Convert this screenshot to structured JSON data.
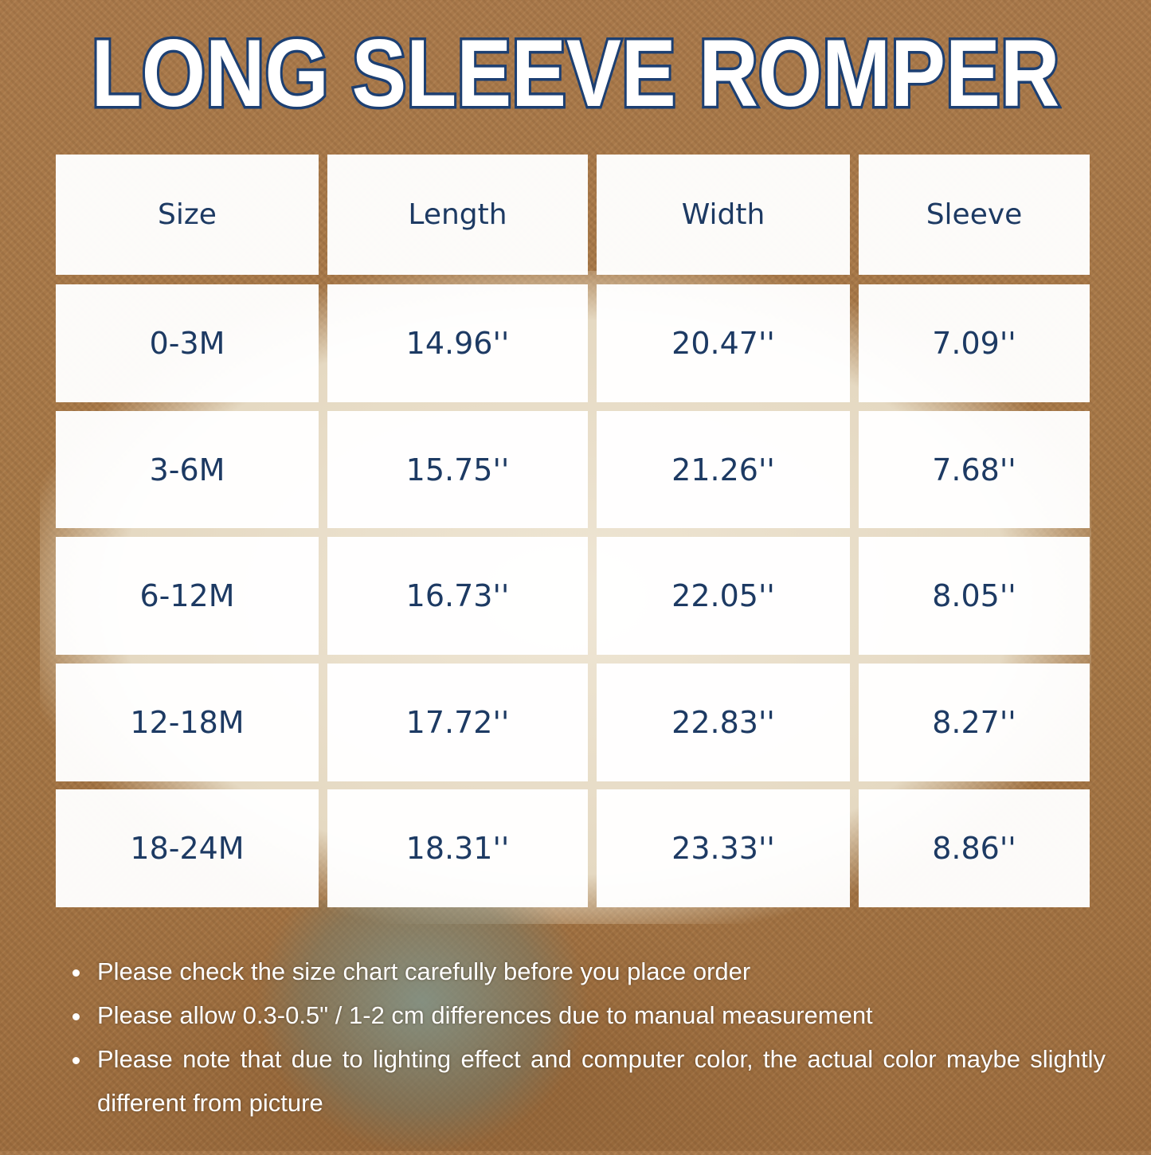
{
  "title": "LONG SLEEVE ROMPER",
  "colors": {
    "title_fill": "#ffffff",
    "title_stroke": "#1c3f72",
    "table_text": "#1d3a63",
    "background": "#a57746"
  },
  "table": {
    "headers": [
      "Size",
      "Length",
      "Width",
      "Sleeve"
    ],
    "rows": [
      [
        "0-3M",
        "14.96''",
        "20.47''",
        "7.09''"
      ],
      [
        "3-6M",
        "15.75''",
        "21.26''",
        "7.68''"
      ],
      [
        "6-12M",
        "16.73''",
        "22.05''",
        "8.05''"
      ],
      [
        "12-18M",
        "17.72''",
        "22.83''",
        "8.27''"
      ],
      [
        "18-24M",
        "18.31''",
        "23.33''",
        "8.86''"
      ]
    ]
  },
  "notes": [
    "Please check the size chart carefully before you place order",
    "Please allow 0.3-0.5\" / 1-2 cm differences due to manual measurement",
    "Please note that due to lighting effect and computer color, the actual color maybe slightly different from picture"
  ]
}
